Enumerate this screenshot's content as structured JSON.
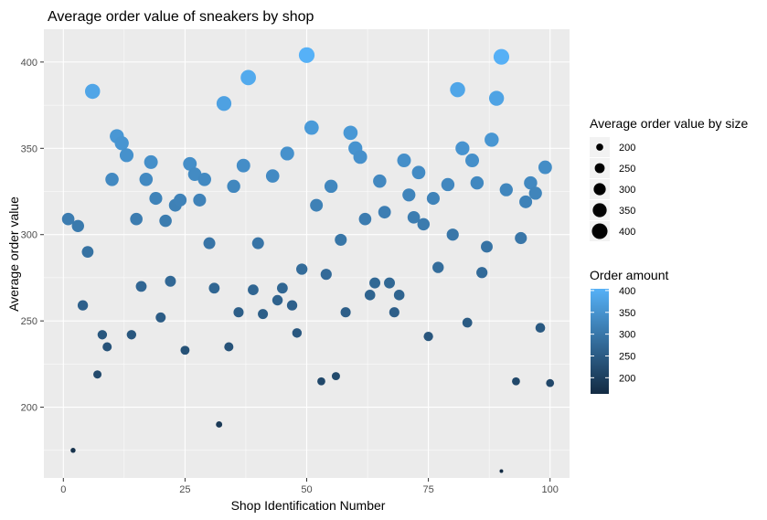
{
  "chart_data": {
    "type": "scatter",
    "title": "Average order value of sneakers by shop",
    "xlabel": "Shop Identification Number",
    "ylabel": "Average order value",
    "xlim": [
      -4,
      104
    ],
    "ylim": [
      159,
      419
    ],
    "x_ticks": [
      0,
      25,
      50,
      75,
      100
    ],
    "y_ticks": [
      200,
      250,
      300,
      350,
      400
    ],
    "grid": true,
    "points": [
      {
        "x": 1,
        "y": 309
      },
      {
        "x": 2,
        "y": 175
      },
      {
        "x": 3,
        "y": 305
      },
      {
        "x": 4,
        "y": 259
      },
      {
        "x": 5,
        "y": 290
      },
      {
        "x": 6,
        "y": 383
      },
      {
        "x": 7,
        "y": 219
      },
      {
        "x": 8,
        "y": 242
      },
      {
        "x": 9,
        "y": 235
      },
      {
        "x": 10,
        "y": 332
      },
      {
        "x": 11,
        "y": 357
      },
      {
        "x": 12,
        "y": 353
      },
      {
        "x": 13,
        "y": 346
      },
      {
        "x": 14,
        "y": 242
      },
      {
        "x": 15,
        "y": 309
      },
      {
        "x": 16,
        "y": 270
      },
      {
        "x": 17,
        "y": 332
      },
      {
        "x": 18,
        "y": 342
      },
      {
        "x": 19,
        "y": 321
      },
      {
        "x": 20,
        "y": 252
      },
      {
        "x": 21,
        "y": 308
      },
      {
        "x": 22,
        "y": 273
      },
      {
        "x": 23,
        "y": 317
      },
      {
        "x": 24,
        "y": 320
      },
      {
        "x": 25,
        "y": 233
      },
      {
        "x": 26,
        "y": 341
      },
      {
        "x": 27,
        "y": 335
      },
      {
        "x": 28,
        "y": 320
      },
      {
        "x": 29,
        "y": 332
      },
      {
        "x": 30,
        "y": 295
      },
      {
        "x": 31,
        "y": 269
      },
      {
        "x": 32,
        "y": 190
      },
      {
        "x": 33,
        "y": 376
      },
      {
        "x": 34,
        "y": 235
      },
      {
        "x": 35,
        "y": 328
      },
      {
        "x": 36,
        "y": 255
      },
      {
        "x": 37,
        "y": 340
      },
      {
        "x": 38,
        "y": 391
      },
      {
        "x": 39,
        "y": 268
      },
      {
        "x": 40,
        "y": 295
      },
      {
        "x": 41,
        "y": 254
      },
      {
        "x": 43,
        "y": 334
      },
      {
        "x": 44,
        "y": 262
      },
      {
        "x": 45,
        "y": 269
      },
      {
        "x": 46,
        "y": 347
      },
      {
        "x": 47,
        "y": 259
      },
      {
        "x": 48,
        "y": 243
      },
      {
        "x": 49,
        "y": 280
      },
      {
        "x": 50,
        "y": 404
      },
      {
        "x": 51,
        "y": 362
      },
      {
        "x": 52,
        "y": 317
      },
      {
        "x": 53,
        "y": 215
      },
      {
        "x": 54,
        "y": 277
      },
      {
        "x": 55,
        "y": 328
      },
      {
        "x": 56,
        "y": 218
      },
      {
        "x": 57,
        "y": 297
      },
      {
        "x": 58,
        "y": 255
      },
      {
        "x": 59,
        "y": 359
      },
      {
        "x": 60,
        "y": 350
      },
      {
        "x": 61,
        "y": 345
      },
      {
        "x": 62,
        "y": 309
      },
      {
        "x": 63,
        "y": 265
      },
      {
        "x": 64,
        "y": 272
      },
      {
        "x": 65,
        "y": 331
      },
      {
        "x": 66,
        "y": 313
      },
      {
        "x": 67,
        "y": 272
      },
      {
        "x": 68,
        "y": 255
      },
      {
        "x": 69,
        "y": 265
      },
      {
        "x": 70,
        "y": 343
      },
      {
        "x": 71,
        "y": 323
      },
      {
        "x": 72,
        "y": 310
      },
      {
        "x": 73,
        "y": 336
      },
      {
        "x": 74,
        "y": 306
      },
      {
        "x": 75,
        "y": 241
      },
      {
        "x": 76,
        "y": 321
      },
      {
        "x": 77,
        "y": 281
      },
      {
        "x": 79,
        "y": 329
      },
      {
        "x": 80,
        "y": 300
      },
      {
        "x": 81,
        "y": 384
      },
      {
        "x": 82,
        "y": 350
      },
      {
        "x": 83,
        "y": 249
      },
      {
        "x": 84,
        "y": 343
      },
      {
        "x": 85,
        "y": 330
      },
      {
        "x": 86,
        "y": 278
      },
      {
        "x": 87,
        "y": 293
      },
      {
        "x": 88,
        "y": 355
      },
      {
        "x": 89,
        "y": 379
      },
      {
        "x": 90,
        "y": 403
      },
      {
        "x": 91,
        "y": 326
      },
      {
        "x": 93,
        "y": 215
      },
      {
        "x": 94,
        "y": 298
      },
      {
        "x": 95,
        "y": 319
      },
      {
        "x": 96,
        "y": 330
      },
      {
        "x": 97,
        "y": 324
      },
      {
        "x": 98,
        "y": 246
      },
      {
        "x": 99,
        "y": 339
      },
      {
        "x": 100,
        "y": 214
      },
      {
        "x": 90,
        "y": 163
      }
    ],
    "size_legend": {
      "title": "Average order value by size",
      "values": [
        200,
        250,
        300,
        350,
        400
      ],
      "labels": [
        "200",
        "250",
        "300",
        "350",
        "400"
      ]
    },
    "color_legend": {
      "title": "Order amount",
      "labels": [
        "400",
        "350",
        "300",
        "250",
        "200"
      ],
      "range": [
        163,
        404
      ],
      "low_color": "#132b43",
      "high_color": "#56b1f7"
    },
    "panel_background": "#ebebeb",
    "grid_color": "#ffffff"
  }
}
